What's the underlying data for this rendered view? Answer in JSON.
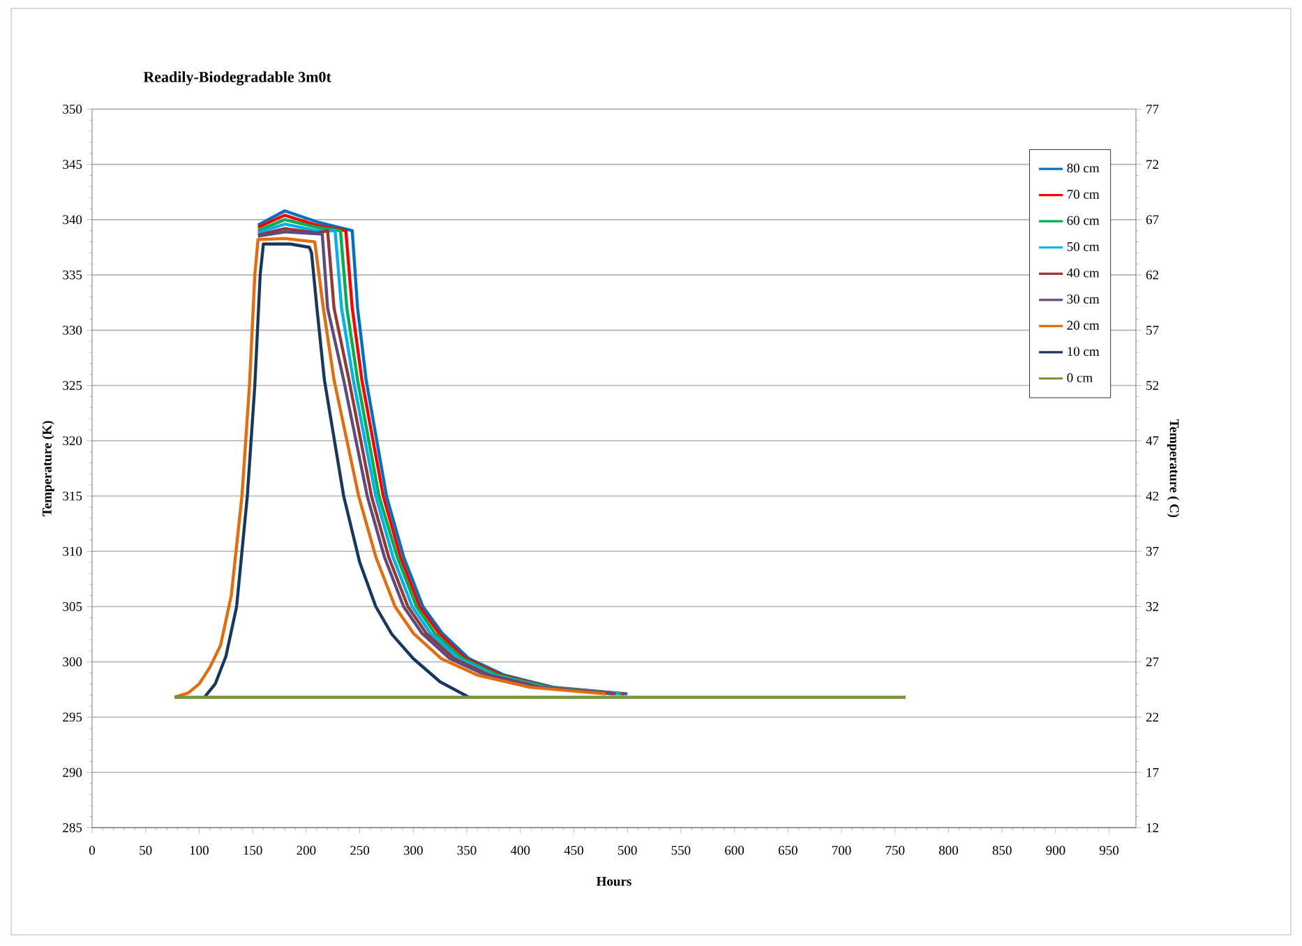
{
  "chart_data": {
    "type": "line",
    "title": "Readily-Biodegradable 3m0t",
    "xlabel": "Hours",
    "ylabel": "Temperature (K)",
    "y2label": "Temperature ( C)",
    "xlim": [
      0,
      975
    ],
    "xticks": [
      0,
      50,
      100,
      150,
      200,
      250,
      300,
      350,
      400,
      450,
      500,
      550,
      600,
      650,
      700,
      750,
      800,
      850,
      900,
      950
    ],
    "ylim": [
      285,
      350
    ],
    "yticks": [
      285,
      290,
      295,
      300,
      305,
      310,
      315,
      320,
      325,
      330,
      335,
      340,
      345,
      350
    ],
    "y2lim": [
      12,
      77
    ],
    "y2ticks": [
      12,
      17,
      22,
      27,
      32,
      37,
      42,
      47,
      52,
      57,
      62,
      67,
      72,
      77
    ],
    "grid": "y",
    "legend": "top right",
    "marker": "none",
    "line_style": "solid",
    "series": [
      {
        "name": "80 cm",
        "color": "#0070c0",
        "x": [
          155,
          180,
          210,
          243,
          248,
          256,
          275,
          291,
          309,
          327,
          352,
          385,
          431,
          500
        ],
        "values": [
          339.5,
          340.8,
          339.8,
          339,
          332,
          325.5,
          315,
          309.5,
          305,
          302.6,
          300.3,
          298.8,
          297.7,
          297.1
        ]
      },
      {
        "name": "70 cm",
        "color": "#ff0000",
        "x": [
          155,
          180,
          210,
          237,
          243,
          252,
          272,
          288,
          306,
          324,
          349,
          382,
          428,
          497
        ],
        "values": [
          339.3,
          340.4,
          339.5,
          339,
          332,
          325.5,
          315,
          309.5,
          305,
          302.6,
          300.3,
          298.8,
          297.7,
          297.1
        ]
      },
      {
        "name": "60 cm",
        "color": "#00b050",
        "x": [
          155,
          180,
          210,
          232,
          238,
          248,
          268,
          285,
          303,
          320,
          346,
          379,
          426,
          495
        ],
        "values": [
          339.0,
          340.0,
          339.3,
          339,
          332,
          325.5,
          315,
          309.5,
          305,
          302.6,
          300.3,
          298.8,
          297.7,
          297.1
        ]
      },
      {
        "name": "50 cm",
        "color": "#00b0f0",
        "x": [
          155,
          180,
          210,
          227,
          233,
          244,
          265,
          281,
          299,
          316,
          342,
          375,
          422,
          492
        ],
        "values": [
          338.8,
          339.6,
          339,
          339,
          332,
          325.5,
          315,
          309.5,
          305,
          302.6,
          300.3,
          298.8,
          297.7,
          297.1
        ]
      },
      {
        "name": "40 cm",
        "color": "#953735",
        "x": [
          155,
          180,
          210,
          220,
          226,
          240,
          261,
          277,
          295,
          312,
          338,
          371,
          419,
          489
        ],
        "values": [
          338.6,
          339.2,
          338.8,
          339,
          332,
          325.5,
          315,
          309.5,
          305,
          302.6,
          300.3,
          298.8,
          297.7,
          297.1
        ]
      },
      {
        "name": "30 cm",
        "color": "#604a7b",
        "x": [
          155,
          180,
          215,
          220,
          235,
          257,
          273,
          291,
          308,
          334,
          368,
          416,
          486
        ],
        "values": [
          338.5,
          338.9,
          338.7,
          332,
          325.5,
          315,
          309.5,
          305,
          302.6,
          300.3,
          298.8,
          297.7,
          297.1
        ]
      },
      {
        "name": "20 cm",
        "color": "#e46c0a",
        "x": [
          77,
          90,
          100,
          110,
          120,
          130,
          140,
          147,
          152,
          155,
          180,
          208,
          216,
          226,
          249,
          265,
          283,
          300,
          326,
          360,
          409,
          480
        ],
        "values": [
          296.8,
          297.2,
          298,
          299.5,
          301.5,
          306,
          315,
          325,
          335,
          338.2,
          338.3,
          338,
          332,
          325.5,
          315,
          309.5,
          305,
          302.6,
          300.3,
          298.8,
          297.7,
          297.1
        ]
      },
      {
        "name": "10 cm",
        "color": "#17375e",
        "x": [
          105,
          115,
          125,
          135,
          145,
          152,
          157,
          160,
          185,
          203,
          205,
          210,
          217,
          235,
          250,
          265,
          280,
          300,
          325,
          352
        ],
        "values": [
          296.8,
          298,
          300.5,
          305,
          315,
          325,
          335,
          337.8,
          337.8,
          337.5,
          337,
          332,
          325.5,
          315,
          309,
          305,
          302.5,
          300.3,
          298.2,
          296.8
        ]
      },
      {
        "name": "0 cm",
        "color": "#77933c",
        "x": [
          77,
          760
        ],
        "values": [
          296.8,
          296.8
        ]
      }
    ]
  }
}
